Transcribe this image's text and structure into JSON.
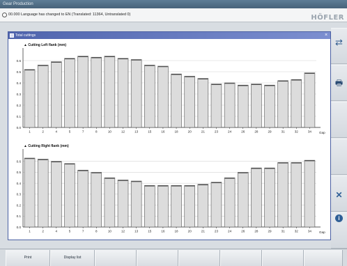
{
  "app": {
    "title": "Gear Production",
    "status_message": "00.000 Language has changed to EN (Translated: 11364, Untranslated 0)",
    "brand": "HÖFLER"
  },
  "dialog": {
    "title": "Total cuttings",
    "close_glyph": "×"
  },
  "sidebar": {
    "buttons": [
      {
        "icon": "transfer-arrows-icon",
        "glyph": "⇄"
      },
      {
        "icon": "printer-icon",
        "glyph": "🖶"
      },
      {
        "icon": "blank",
        "glyph": ""
      },
      {
        "icon": "blank",
        "glyph": ""
      },
      {
        "icon": "close-x-icon",
        "glyph": "✕"
      },
      {
        "icon": "info-icon",
        "glyph": "i"
      }
    ]
  },
  "footer": {
    "buttons": [
      "Print",
      "Display list",
      "",
      "",
      "",
      "",
      "",
      ""
    ]
  },
  "colors": {
    "bar_fill": "#dcdcdc",
    "bar_stroke": "#555555",
    "dialog_border": "#4a5fa3"
  },
  "chart_data": [
    {
      "type": "bar",
      "title": "Cutting Left flank (mm)",
      "xlabel": "Gap",
      "ylabel": "",
      "categories": [
        "1",
        "2",
        "4",
        "5",
        "7",
        "8",
        "10",
        "12",
        "13",
        "15",
        "16",
        "18",
        "20",
        "21",
        "23",
        "24",
        "26",
        "28",
        "29",
        "31",
        "32",
        "34"
      ],
      "values": [
        0.52,
        0.56,
        0.59,
        0.62,
        0.64,
        0.63,
        0.64,
        0.62,
        0.61,
        0.56,
        0.55,
        0.48,
        0.46,
        0.44,
        0.39,
        0.4,
        0.38,
        0.39,
        0.38,
        0.42,
        0.43,
        0.49
      ],
      "ylim": [
        0,
        0.7
      ],
      "yticks": [
        "0.0",
        "0.1",
        "0.2",
        "0.3",
        "0.4",
        "0.5",
        "0.6"
      ],
      "grid": true
    },
    {
      "type": "bar",
      "title": "Cutting Right flank (mm)",
      "xlabel": "Gap",
      "ylabel": "",
      "categories": [
        "1",
        "2",
        "4",
        "5",
        "7",
        "8",
        "10",
        "12",
        "13",
        "15",
        "16",
        "18",
        "20",
        "21",
        "23",
        "24",
        "26",
        "28",
        "29",
        "31",
        "32",
        "34"
      ],
      "values": [
        0.63,
        0.62,
        0.6,
        0.58,
        0.52,
        0.5,
        0.45,
        0.43,
        0.42,
        0.38,
        0.38,
        0.38,
        0.38,
        0.39,
        0.41,
        0.45,
        0.5,
        0.54,
        0.54,
        0.59,
        0.59,
        0.61
      ],
      "ylim": [
        0,
        0.7
      ],
      "yticks": [
        "0.0",
        "0.1",
        "0.2",
        "0.3",
        "0.4",
        "0.5",
        "0.6"
      ],
      "grid": true
    }
  ]
}
